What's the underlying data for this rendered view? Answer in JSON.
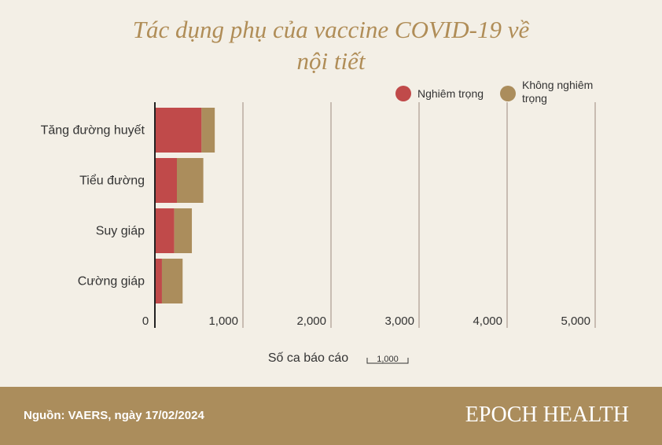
{
  "title_line1": "Tác dụng phụ của vaccine COVID-19 về",
  "title_line2": "nội tiết",
  "legend": [
    {
      "label": "Nghiêm trọng",
      "color": "#c04a4a"
    },
    {
      "label": "Không nghiêm trọng",
      "color": "#ab8d5c"
    }
  ],
  "chart_data": {
    "type": "bar",
    "orientation": "horizontal",
    "stacked": true,
    "categories": [
      "Tăng đường huyết",
      "Tiểu đường",
      "Suy giáp",
      "Cường giáp"
    ],
    "series": [
      {
        "name": "Nghiêm trọng",
        "values": [
          530,
          250,
          220,
          80
        ],
        "color": "#c04a4a"
      },
      {
        "name": "Không nghiêm trọng",
        "values": [
          150,
          300,
          200,
          235
        ],
        "color": "#ab8d5c"
      }
    ],
    "xticks": [
      "0",
      "1,000",
      "2,000",
      "3,000",
      "4,000",
      "5,000"
    ],
    "xlim": [
      0,
      5000
    ],
    "xlabel": "Số ca báo cáo",
    "scale_label": "1,000",
    "grid": true
  },
  "footer": {
    "source": "Nguồn: VAERS, ngày 17/02/2024",
    "brand": "EPOCH HEALTH"
  }
}
